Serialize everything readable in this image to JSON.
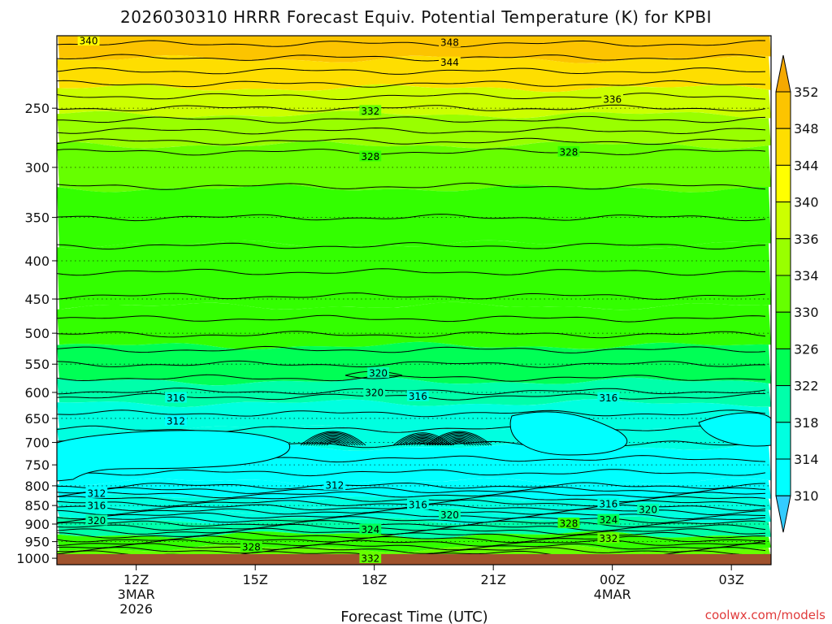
{
  "chart_data": {
    "type": "heatmap",
    "title": "2026030310 HRRR Forecast Equiv. Potential Temperature (K) for KPBI",
    "xlabel": "Forecast Time (UTC)",
    "ylabel": "",
    "x_ticks": [
      {
        "label": "12Z",
        "sub1": "3MAR",
        "sub2": "2026",
        "hours": 12
      },
      {
        "label": "15Z",
        "sub1": "",
        "sub2": "",
        "hours": 15
      },
      {
        "label": "18Z",
        "sub1": "",
        "sub2": "",
        "hours": 18
      },
      {
        "label": "21Z",
        "sub1": "",
        "sub2": "",
        "hours": 21
      },
      {
        "label": "00Z",
        "sub1": "4MAR",
        "sub2": "",
        "hours": 24
      },
      {
        "label": "03Z",
        "sub1": "",
        "sub2": "",
        "hours": 27
      }
    ],
    "xlim_hours": [
      10,
      28
    ],
    "y_ticks": [
      250,
      300,
      350,
      400,
      450,
      500,
      550,
      600,
      650,
      700,
      750,
      800,
      850,
      900,
      950,
      1000
    ],
    "ylim_hpa": [
      200,
      1020
    ],
    "y_scale": "log",
    "y_inverted": true,
    "grid": "dotted horizontal",
    "colorbar": {
      "unit": "K",
      "labels": [
        352,
        348,
        344,
        340,
        336,
        334,
        330,
        326,
        322,
        318,
        314,
        310
      ],
      "colors": [
        "#f5a900",
        "#fcc400",
        "#fede00",
        "#ffff00",
        "#ccff00",
        "#99ff00",
        "#66ff00",
        "#33ff00",
        "#00ff55",
        "#00ffaa",
        "#00ffe0",
        "#00ffff",
        "#33ccff"
      ]
    },
    "bands": [
      {
        "p": 200,
        "value": 349
      },
      {
        "p": 215,
        "value": 344
      },
      {
        "p": 235,
        "value": 338
      },
      {
        "p": 255,
        "value": 334
      },
      {
        "p": 280,
        "value": 330
      },
      {
        "p": 320,
        "value": 328
      },
      {
        "p": 380,
        "value": 327
      },
      {
        "p": 460,
        "value": 327
      },
      {
        "p": 520,
        "value": 325
      },
      {
        "p": 580,
        "value": 321
      },
      {
        "p": 620,
        "value": 317
      },
      {
        "p": 670,
        "value": 314
      },
      {
        "p": 710,
        "value": 311
      },
      {
        "p": 790,
        "value": 311
      },
      {
        "p": 830,
        "value": 314
      },
      {
        "p": 860,
        "value": 317
      },
      {
        "p": 890,
        "value": 321
      },
      {
        "p": 930,
        "value": 326
      },
      {
        "p": 970,
        "value": 331
      },
      {
        "p": 1010,
        "value": 334
      }
    ],
    "contour_labels": [
      {
        "text": "340",
        "hours": 10.8,
        "p": 203
      },
      {
        "text": "348",
        "hours": 19.9,
        "p": 204
      },
      {
        "text": "344",
        "hours": 19.9,
        "p": 217
      },
      {
        "text": "336",
        "hours": 24.0,
        "p": 243
      },
      {
        "text": "332",
        "hours": 17.9,
        "p": 252
      },
      {
        "text": "328",
        "hours": 17.9,
        "p": 290
      },
      {
        "text": "328",
        "hours": 22.9,
        "p": 286
      },
      {
        "text": "320",
        "hours": 18.1,
        "p": 565
      },
      {
        "text": "320",
        "hours": 18.0,
        "p": 600
      },
      {
        "text": "316",
        "hours": 19.1,
        "p": 607
      },
      {
        "text": "316",
        "hours": 23.9,
        "p": 610
      },
      {
        "text": "316",
        "hours": 13.0,
        "p": 610
      },
      {
        "text": "312",
        "hours": 13.0,
        "p": 655
      },
      {
        "text": "312",
        "hours": 17.0,
        "p": 798
      },
      {
        "text": "312",
        "hours": 11.0,
        "p": 818
      },
      {
        "text": "316",
        "hours": 11.0,
        "p": 850
      },
      {
        "text": "316",
        "hours": 19.1,
        "p": 848
      },
      {
        "text": "316",
        "hours": 23.9,
        "p": 845
      },
      {
        "text": "320",
        "hours": 24.9,
        "p": 860
      },
      {
        "text": "320",
        "hours": 11.0,
        "p": 890
      },
      {
        "text": "320",
        "hours": 19.9,
        "p": 875
      },
      {
        "text": "324",
        "hours": 17.9,
        "p": 915
      },
      {
        "text": "324",
        "hours": 23.9,
        "p": 888
      },
      {
        "text": "328",
        "hours": 14.9,
        "p": 965
      },
      {
        "text": "328",
        "hours": 22.9,
        "p": 898
      },
      {
        "text": "332",
        "hours": 23.9,
        "p": 940
      },
      {
        "text": "332",
        "hours": 17.9,
        "p": 1000
      }
    ]
  },
  "credit": "coolwx.com/models"
}
